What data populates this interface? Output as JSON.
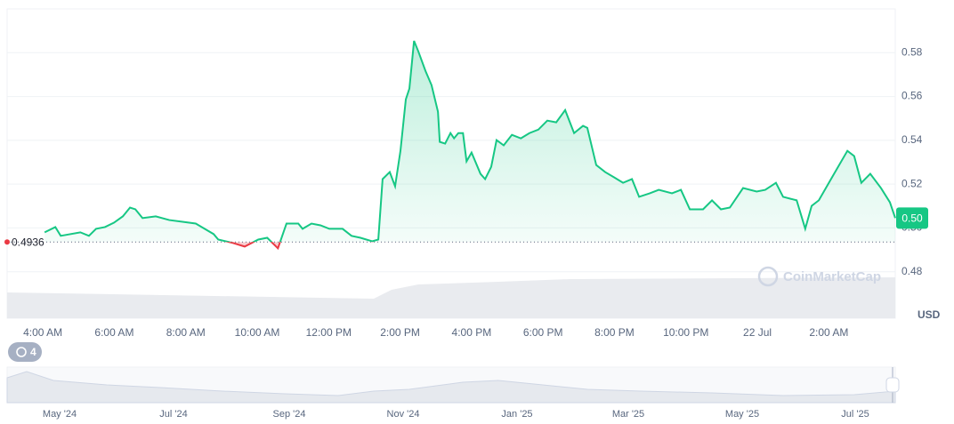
{
  "chart_data": {
    "type": "line",
    "x": [
      4.05,
      4.35,
      4.5,
      5.05,
      5.29,
      5.49,
      5.74,
      5.99,
      6.24,
      6.44,
      6.59,
      6.79,
      7.16,
      7.54,
      7.91,
      8.28,
      8.78,
      8.91,
      9.33,
      9.65,
      10.03,
      10.28,
      10.58,
      10.82,
      11.15,
      11.27,
      11.52,
      11.77,
      12.02,
      12.39,
      12.64,
      12.89,
      13.22,
      13.39,
      13.51,
      13.71,
      13.86,
      14.01,
      14.16,
      14.26,
      14.39,
      14.51,
      14.71,
      14.88,
      15.06,
      15.11,
      15.26,
      15.41,
      15.51,
      15.63,
      15.76,
      15.86,
      16.0,
      16.25,
      16.38,
      16.55,
      16.7,
      16.9,
      17.13,
      17.38,
      17.62,
      17.87,
      18.12,
      18.37,
      18.62,
      18.87,
      19.12,
      19.24,
      19.49,
      19.74,
      19.99,
      20.24,
      20.49,
      20.69,
      20.99,
      21.24,
      21.61,
      21.86,
      22.11,
      22.48,
      22.73,
      22.98,
      23.23,
      23.6,
      23.98,
      24.22,
      24.52,
      24.72,
      25.1,
      25.34,
      25.52,
      25.72,
      26.09,
      26.52,
      26.71,
      26.91,
      27.16,
      27.46,
      27.71,
      27.86
    ],
    "values": [
      0.498,
      0.5004,
      0.4964,
      0.498,
      0.4964,
      0.4996,
      0.5004,
      0.5024,
      0.5053,
      0.5093,
      0.5085,
      0.5045,
      0.5053,
      0.5036,
      0.5028,
      0.502,
      0.4972,
      0.4947,
      0.4931,
      0.4915,
      0.4947,
      0.4955,
      0.4907,
      0.502,
      0.502,
      0.4996,
      0.502,
      0.5012,
      0.4996,
      0.4996,
      0.4964,
      0.4955,
      0.4939,
      0.4947,
      0.5223,
      0.5255,
      0.519,
      0.5352,
      0.5587,
      0.5636,
      0.5854,
      0.5806,
      0.5717,
      0.5652,
      0.553,
      0.5393,
      0.5385,
      0.5433,
      0.5409,
      0.5433,
      0.5433,
      0.5304,
      0.5344,
      0.5247,
      0.5223,
      0.5279,
      0.5401,
      0.5377,
      0.5425,
      0.5409,
      0.5433,
      0.5449,
      0.549,
      0.5482,
      0.5538,
      0.5433,
      0.5466,
      0.5457,
      0.5287,
      0.5255,
      0.5231,
      0.5206,
      0.5223,
      0.5142,
      0.5158,
      0.5174,
      0.5158,
      0.5174,
      0.5085,
      0.5085,
      0.5126,
      0.5085,
      0.5093,
      0.5182,
      0.5166,
      0.5174,
      0.5206,
      0.5142,
      0.5126,
      0.4996,
      0.5101,
      0.5126,
      0.5231,
      0.5352,
      0.5328,
      0.5206,
      0.5247,
      0.5182,
      0.5117,
      0.5045
    ],
    "color": "#16c784",
    "below_color": "#ea3943",
    "baseline": 0.4936,
    "current_price": {
      "value": 0.5045,
      "label": "0.50"
    },
    "xlim": [
      3.0,
      27.86
    ],
    "xticks": [
      {
        "value": 4,
        "label": "4:00 AM"
      },
      {
        "value": 6,
        "label": "6:00 AM"
      },
      {
        "value": 8,
        "label": "8:00 AM"
      },
      {
        "value": 10,
        "label": "10:00 AM"
      },
      {
        "value": 12,
        "label": "12:00 PM"
      },
      {
        "value": 14,
        "label": "2:00 PM"
      },
      {
        "value": 16,
        "label": "4:00 PM"
      },
      {
        "value": 18,
        "label": "6:00 PM"
      },
      {
        "value": 20,
        "label": "8:00 PM"
      },
      {
        "value": 22,
        "label": "10:00 PM"
      },
      {
        "value": 24,
        "label": "22 Jul"
      },
      {
        "value": 26,
        "label": "2:00 AM"
      }
    ],
    "ylim": [
      0.46,
      0.6
    ],
    "yticks": [
      0.48,
      {
        "value": 0.5,
        "label": "0.50"
      },
      0.52,
      0.54,
      0.56,
      0.58
    ],
    "y_label": "USD",
    "grid": true
  },
  "watermark": "CoinMarketCap",
  "badge": "4",
  "navigator": {
    "labels": [
      "May '24",
      "Jul '24",
      "Sep '24",
      "Nov '24",
      "Jan '25",
      "Mar '25",
      "May '25",
      "Jul '25"
    ]
  }
}
